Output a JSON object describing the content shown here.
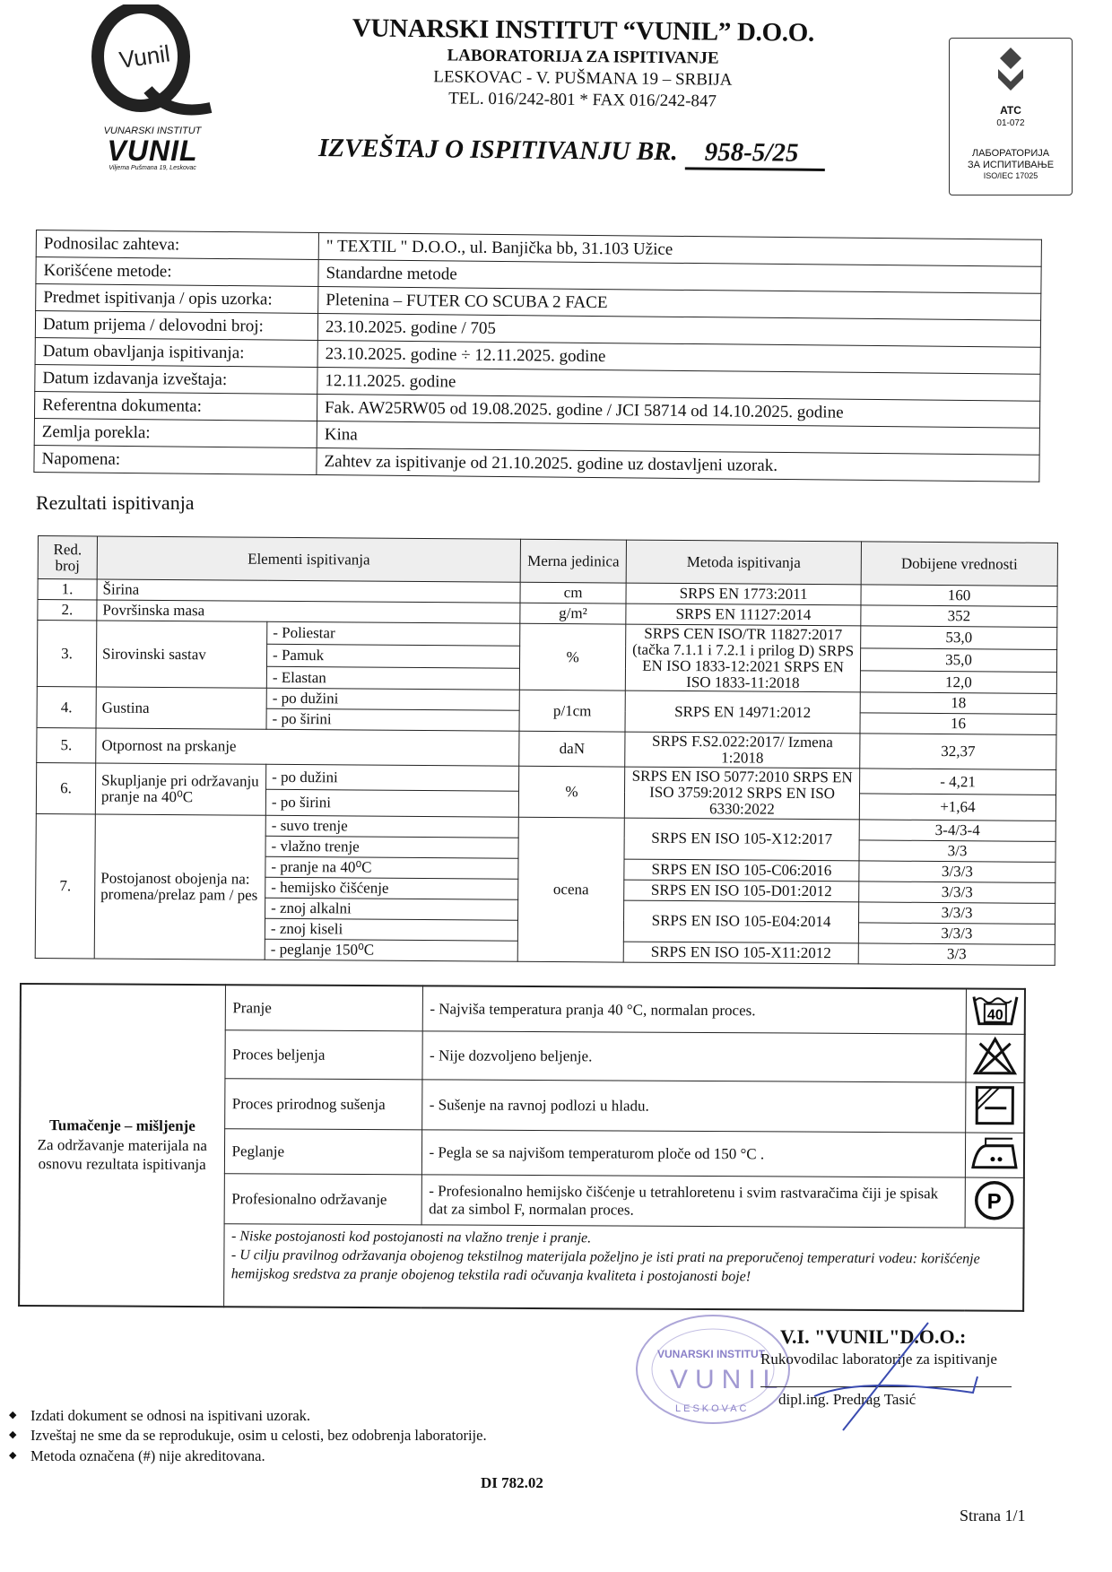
{
  "header": {
    "logo_text": "Vunil",
    "logo_caption_top": "VUNARSKI INSTITUT",
    "logo_caption_main": "VUNIL",
    "logo_caption_address": "Viljema Pušmana 19, Leskovac",
    "institute": "VUNARSKI INSTITUT “VUNIL” D.O.O.",
    "lab": "LABORATORIJA ZA ISPITIVANJE",
    "address": "LESKOVAC - V. PUŠMANA 19 – SRBIJA",
    "contact": "TEL. 016/242-801 * FAX 016/242-847",
    "report_title": "IZVEŠTAJ O ISPITIVANJU BR.",
    "report_number": "958-5/25"
  },
  "accreditation": {
    "logo": "ATC",
    "code": "01-072",
    "line1": "ЛАБОРАТОРИЈА",
    "line2": "ЗА ИСПИТИВАЊЕ",
    "standard": "ISO/IEC 17025"
  },
  "info": [
    {
      "label": "Podnosilac zahteva:",
      "value": "\" TEXTIL \" D.O.O., ul. Banjička bb, 31.103 Užice"
    },
    {
      "label": "Korišćene metode:",
      "value": "Standardne metode"
    },
    {
      "label": "Predmet ispitivanja / opis uzorka:",
      "value": "Pletenina – FUTER CO SCUBA 2 FACE"
    },
    {
      "label": "Datum prijema / delovodni broj:",
      "value": "23.10.2025.  godine   /    705"
    },
    {
      "label": "Datum obavljanja ispitivanja:",
      "value": "23.10.2025.  godine ÷ 12.11.2025.  godine"
    },
    {
      "label": "Datum izdavanja izveštaja:",
      "value": "12.11.2025.  godine"
    },
    {
      "label": "Referentna dokumenta:",
      "value": "Fak. AW25RW05 od 19.08.2025. godine  /  JCI 58714 od 14.10.2025. godine"
    },
    {
      "label": "Zemlja porekla:",
      "value": "Kina"
    },
    {
      "label": "Napomena:",
      "value": "Zahtev za ispitivanje od 21.10.2025. godine uz dostavljeni uzorak."
    }
  ],
  "results": {
    "section_title": "Rezultati ispitivanja",
    "headers": {
      "no": "Red. broj",
      "element": "Elementi ispitivanja",
      "unit": "Merna jedinica",
      "method": "Metoda ispitivanja",
      "value": "Dobijene vrednosti"
    },
    "groups": [
      {
        "no": "1.",
        "element": "Širina",
        "unit": "cm",
        "methods": [
          {
            "text": "SRPS EN 1773:2011",
            "span": 1
          }
        ],
        "items": [
          {
            "sub": "",
            "value": "160"
          }
        ]
      },
      {
        "no": "2.",
        "element": "Površinska masa",
        "unit": "g/m²",
        "methods": [
          {
            "text": "SRPS EN 11127:2014",
            "span": 1
          }
        ],
        "items": [
          {
            "sub": "",
            "value": "352"
          }
        ]
      },
      {
        "no": "3.",
        "element": "Sirovinski sastav",
        "unit": "%",
        "methods": [
          {
            "text": "SRPS CEN ISO/TR 11827:2017 (tačka 7.1.1 i 7.2.1 i prilog D) SRPS EN ISO 1833-12:2021 SRPS EN ISO 1833-11:2018",
            "span": 3
          }
        ],
        "items": [
          {
            "sub": "- Poliestar",
            "value": "53,0"
          },
          {
            "sub": "- Pamuk",
            "value": "35,0"
          },
          {
            "sub": "- Elastan",
            "value": "12,0"
          }
        ]
      },
      {
        "no": "4.",
        "element": "Gustina",
        "unit": "p/1cm",
        "methods": [
          {
            "text": "SRPS EN 14971:2012",
            "span": 2
          }
        ],
        "items": [
          {
            "sub": "- po dužini",
            "value": "18"
          },
          {
            "sub": "- po širini",
            "value": "16"
          }
        ]
      },
      {
        "no": "5.",
        "element": "Otpornost na prskanje",
        "unit": "daN",
        "methods": [
          {
            "text": "SRPS F.S2.022:2017/ Izmena 1:2018",
            "span": 1
          }
        ],
        "items": [
          {
            "sub": "",
            "value": "32,37"
          }
        ]
      },
      {
        "no": "6.",
        "element": "Skupljanje pri održavanju pranje na 40⁰C",
        "unit": "%",
        "methods": [
          {
            "text": "SRPS EN ISO 5077:2010 SRPS EN ISO 3759:2012 SRPS EN ISO 6330:2022",
            "span": 2
          }
        ],
        "items": [
          {
            "sub": "- po dužini",
            "value": "- 4,21"
          },
          {
            "sub": "- po širini",
            "value": "+1,64"
          }
        ]
      },
      {
        "no": "7.",
        "element": "Postojanost obojenja na: promena/prelaz pam / pes",
        "unit": "ocena",
        "methods": [
          {
            "text": "SRPS EN ISO 105-X12:2017",
            "span": 2
          },
          {
            "text": "SRPS EN ISO 105-C06:2016",
            "span": 1
          },
          {
            "text": "SRPS EN ISO 105-D01:2012",
            "span": 1
          },
          {
            "text": "SRPS EN ISO 105-E04:2014",
            "span": 2
          },
          {
            "text": "SRPS EN ISO 105-X11:2012",
            "span": 1
          }
        ],
        "items": [
          {
            "sub": "- suvo trenje",
            "value": "3-4/3-4"
          },
          {
            "sub": "- vlažno trenje",
            "value": "3/3"
          },
          {
            "sub": "- pranje na 40⁰C",
            "value": "3/3/3"
          },
          {
            "sub": "- hemijsko čišćenje",
            "value": "3/3/3"
          },
          {
            "sub": "- znoj alkalni",
            "value": "3/3/3"
          },
          {
            "sub": "- znoj  kiseli",
            "value": "3/3/3"
          },
          {
            "sub": "- peglanje 150⁰C",
            "value": "3/3"
          }
        ]
      }
    ]
  },
  "care": {
    "heading": "Tumačenje – mišljenje",
    "subheading": "Za održavanje materijala na osnovu rezultata ispitivanja",
    "rows": [
      {
        "label": "Pranje",
        "text": "-  Najviša temperatura pranja 40 °C, normalan proces.",
        "icon": "wash-40-icon",
        "icon_text": "40"
      },
      {
        "label": "Proces beljenja",
        "text": "- Nije dozvoljeno beljenje.",
        "icon": "no-bleach-icon"
      },
      {
        "label": "Proces prirodnog sušenja",
        "text": "-  Sušenje na ravnoj podlozi u hladu.",
        "icon": "dry-flat-shade-icon"
      },
      {
        "label": "Peglanje",
        "text": "-  Pegla se sa najvišom temperaturom ploče od 150 °C .",
        "icon": "iron-two-dots-icon"
      },
      {
        "label": "Profesionalno održavanje",
        "text": "- Profesionalno hemijsko čišćenje u tetrahloretenu i svim rastvaračima čiji je spisak dat za simbol F, normalan proces.",
        "icon": "professional-clean-p-icon",
        "icon_text": "P"
      }
    ],
    "notes": [
      "- Niske postojanosti kod postojanosti na vlažno trenje i pranje.",
      "- U cilju pravilnog održavanja obojenog tekstilnog materijala poželjno je isti prati na preporučenoj temperaturi vodeu: korišćenje hemijskog sredstva za pranje obojenog tekstila radi očuvanja kvaliteta i postojanosti boje!"
    ]
  },
  "signature": {
    "company": "V.I. \"VUNIL\"D.O.O.:",
    "role": "Rukovodilac laboratorije za ispitivanje",
    "name": "dipl.ing. Predrag Tasić",
    "stamp_text": "VUNARSKI INSTITUT VUNIL LESKOVAC"
  },
  "footer": {
    "bullets": [
      "Izdati dokument se odnosi na ispitivani uzorak.",
      "Izveštaj ne sme da se reprodukuje, osim u celosti, bez odobrenja laboratorije.",
      "Metoda označena (#) nije akreditovana."
    ],
    "doc_code": "DI 782.02",
    "page": "Strana 1/1"
  },
  "colors": {
    "ink": "#111111",
    "stamp": "#8a80c8",
    "signature": "#3a4bb0",
    "header_fill": "#eeeeee"
  }
}
